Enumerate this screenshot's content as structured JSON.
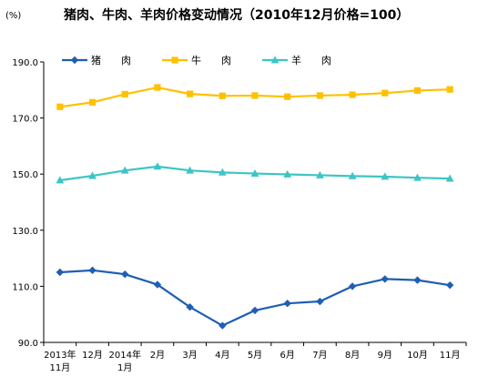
{
  "chart_data": {
    "type": "line",
    "title": "猪肉、牛肉、羊肉价格变动情况（2010年12月价格=100）",
    "unit": "(%)",
    "x_labels": [
      [
        "2013年",
        "11月"
      ],
      [
        "12月"
      ],
      [
        "2014年",
        "1月"
      ],
      [
        "2月"
      ],
      [
        "3月"
      ],
      [
        "4月"
      ],
      [
        "5月"
      ],
      [
        "6月"
      ],
      [
        "7月"
      ],
      [
        "8月"
      ],
      [
        "9月"
      ],
      [
        "10月"
      ],
      [
        "11月"
      ]
    ],
    "ylim": [
      90,
      190
    ],
    "yticks": [
      "90.0",
      "110.0",
      "130.0",
      "150.0",
      "170.0",
      "190.0"
    ],
    "grid": false,
    "legend_position": "top-left",
    "series": [
      {
        "name": "猪　　肉",
        "color": "#1F5EB4",
        "marker": "diamond",
        "values": [
          115.0,
          115.7,
          114.3,
          110.6,
          102.6,
          96.0,
          101.4,
          103.9,
          104.6,
          110.0,
          112.6,
          112.2,
          110.4
        ]
      },
      {
        "name": "牛　　肉",
        "color": "#FFC000",
        "marker": "square",
        "values": [
          174.0,
          175.6,
          178.5,
          180.9,
          178.6,
          177.9,
          178.0,
          177.6,
          178.0,
          178.3,
          178.9,
          179.8,
          180.2
        ]
      },
      {
        "name": "羊　　肉",
        "color": "#3CC5C5",
        "marker": "triangle",
        "values": [
          147.8,
          149.4,
          151.3,
          152.7,
          151.3,
          150.6,
          150.2,
          149.9,
          149.6,
          149.3,
          149.1,
          148.7,
          148.4
        ]
      }
    ]
  }
}
